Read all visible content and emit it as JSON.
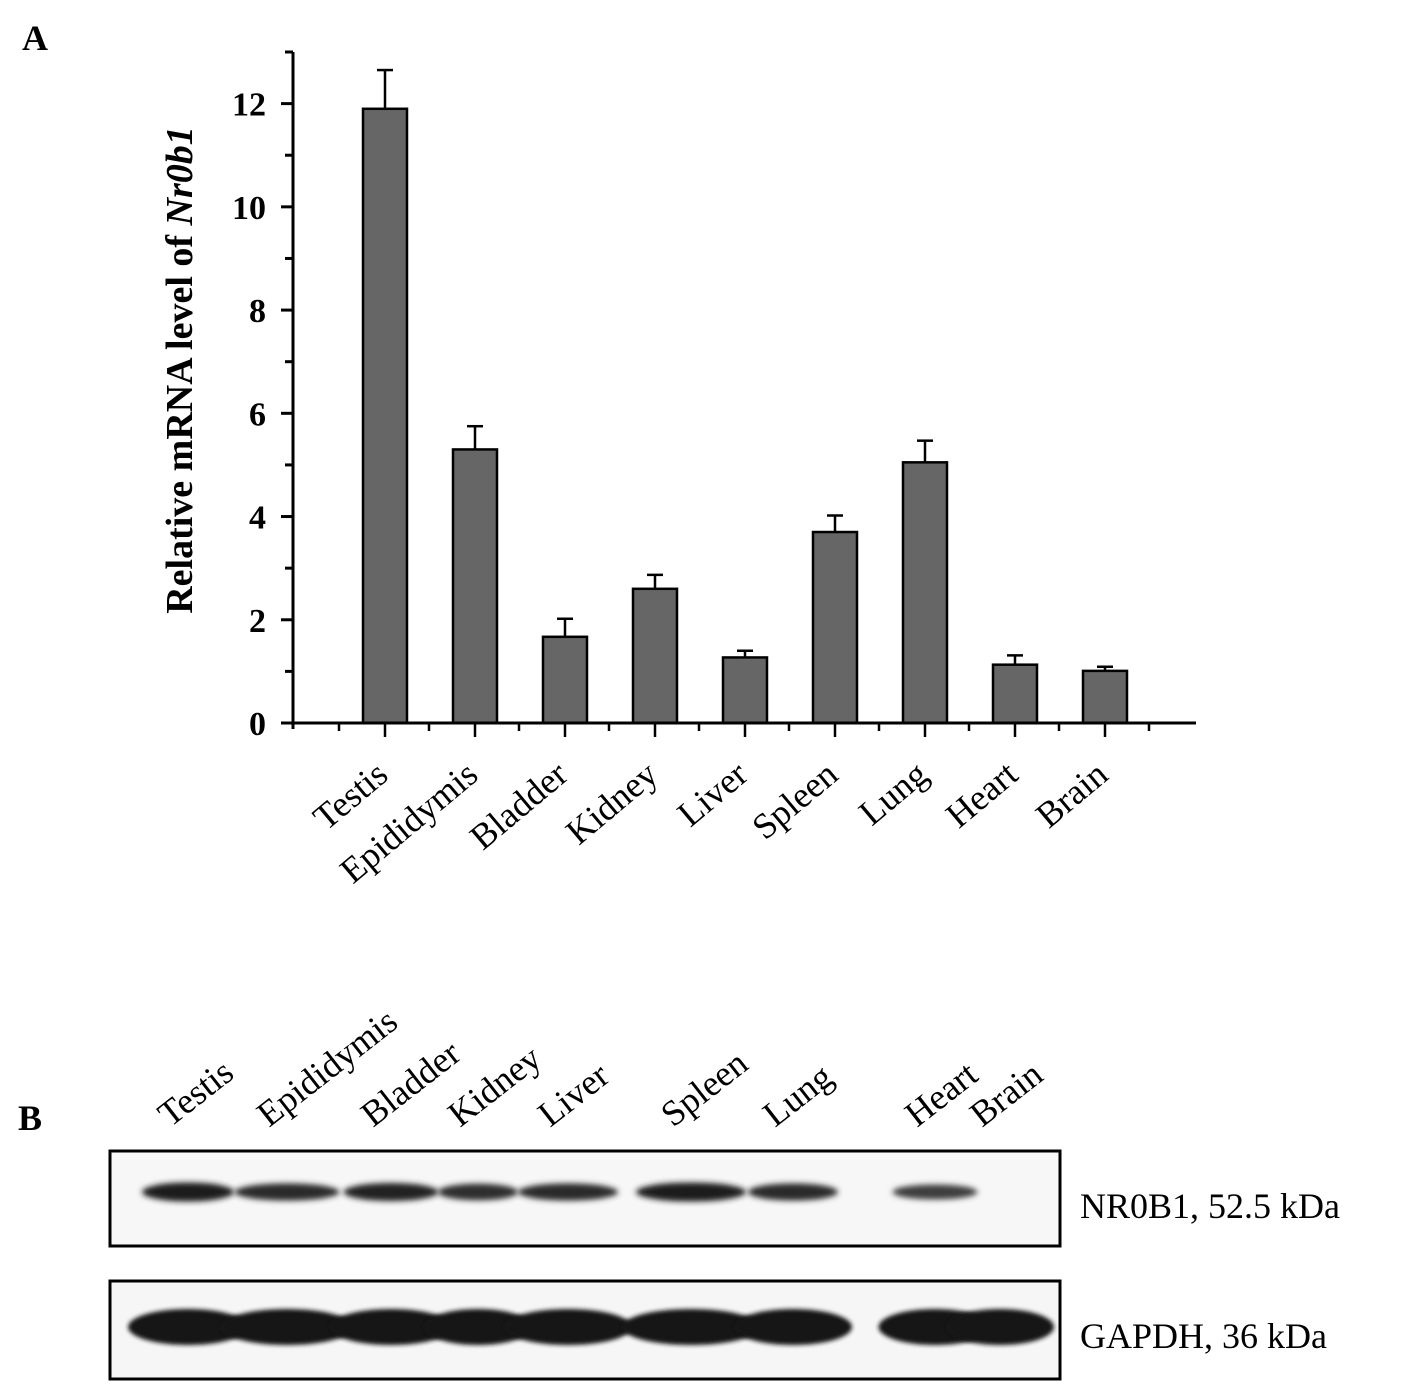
{
  "panel_a_letter": "A",
  "panel_b_letter": "B",
  "chart_data": {
    "type": "bar",
    "title": "",
    "xlabel": "",
    "ylabel": "Relative mRNA level of ",
    "ylabel_italic": "Nr0b1",
    "categories": [
      "Testis",
      "Epididymis",
      "Bladder",
      "Kidney",
      "Liver",
      "Spleen",
      "Lung",
      "Heart",
      "Brain"
    ],
    "values": [
      11.9,
      5.3,
      1.67,
      2.6,
      1.27,
      3.7,
      5.05,
      1.13,
      1.01
    ],
    "errors": [
      0.75,
      0.45,
      0.35,
      0.27,
      0.13,
      0.32,
      0.42,
      0.18,
      0.08
    ],
    "ylim": [
      0,
      13
    ],
    "yticks_labeled": [
      0,
      2,
      4,
      6,
      8,
      10,
      12
    ],
    "bar_color": "#666666",
    "grid": false,
    "legend": "none"
  },
  "blot": {
    "lanes": [
      "Testis",
      "Epididymis",
      "Bladder",
      "Kidney",
      "Liver",
      "Spleen",
      "Lung",
      "Heart",
      "Brain"
    ],
    "rows": [
      {
        "label": "NR0B1, 52.5 kDa",
        "intensity": [
          0.9,
          0.7,
          0.8,
          0.65,
          0.7,
          0.9,
          0.7,
          0.45,
          0.0
        ]
      },
      {
        "label": "GAPDH, 36 kDa",
        "intensity": [
          1.0,
          1.0,
          1.0,
          1.0,
          1.0,
          1.0,
          1.0,
          1.0,
          1.0
        ]
      }
    ]
  }
}
